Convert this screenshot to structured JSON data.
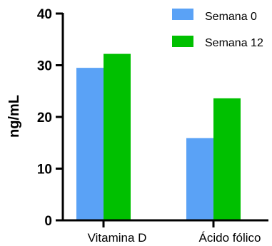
{
  "chart_data": {
    "type": "bar",
    "categories": [
      "Vitamina D",
      "Ácido fólico"
    ],
    "series": [
      {
        "name": "Semana 0",
        "color": "#5aa2f6",
        "values": [
          29.5,
          15.9
        ]
      },
      {
        "name": "Semana 12",
        "color": "#00c000",
        "values": [
          32.2,
          23.6
        ]
      }
    ],
    "title": "",
    "xlabel": "",
    "ylabel": "ng/mL",
    "ylim": [
      0,
      40
    ],
    "yticks": [
      0,
      10,
      20,
      30,
      40
    ],
    "grid": false,
    "legend_position": "top-right"
  }
}
